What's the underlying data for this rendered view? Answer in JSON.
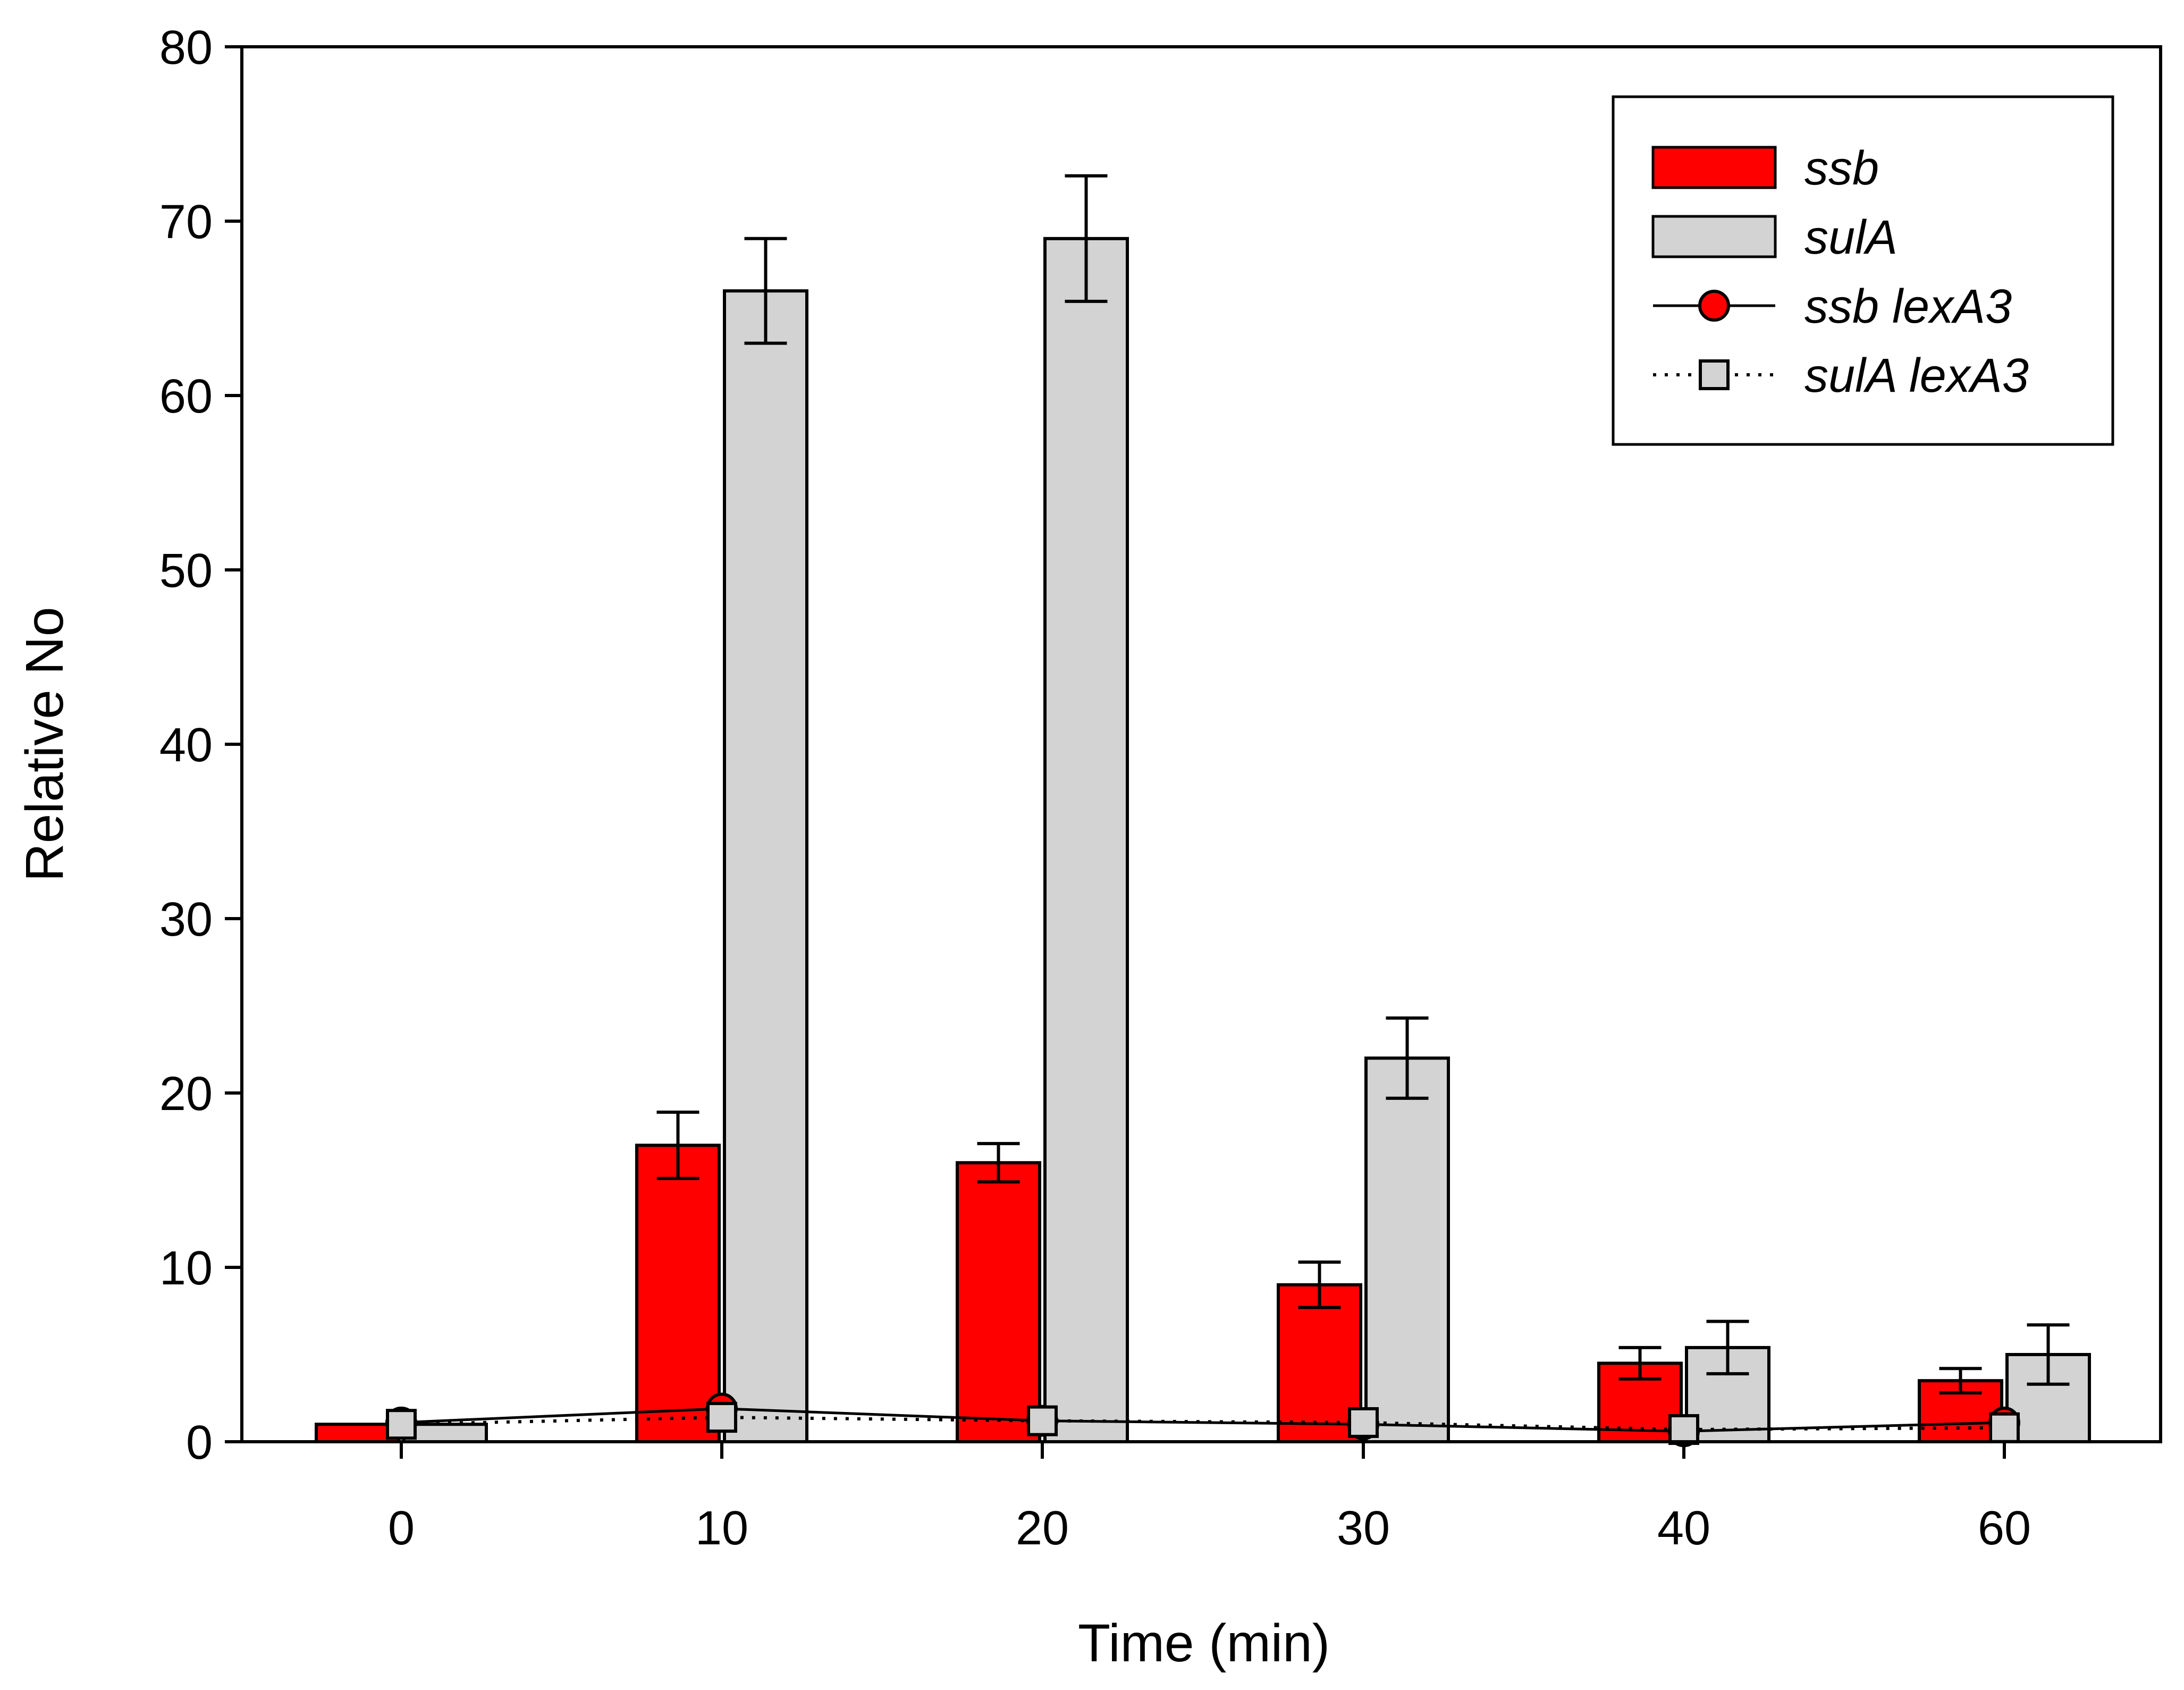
{
  "chart_data": {
    "type": "bar",
    "title": "",
    "xlabel": "Time (min)",
    "ylabel": "Relative No",
    "ylim": [
      0,
      80
    ],
    "yticks": [
      0,
      10,
      20,
      30,
      40,
      50,
      60,
      70,
      80
    ],
    "categories": [
      "0",
      "10",
      "20",
      "30",
      "40",
      "60"
    ],
    "legend_position": "top-right",
    "colors": {
      "ssb": "#ff0000",
      "sulA": "#d3d3d3",
      "axis": "#000000"
    },
    "bar_series": [
      {
        "name": "ssb",
        "color": "#ff0000",
        "values": [
          1,
          17,
          16,
          9,
          4.5,
          3.5
        ],
        "errors": [
          0,
          1.9,
          1.1,
          1.3,
          0.9,
          0.7
        ]
      },
      {
        "name": "sulA",
        "color": "#d3d3d3",
        "values": [
          1,
          66,
          69,
          22,
          5.4,
          5.0
        ],
        "errors": [
          0,
          3.0,
          3.6,
          2.3,
          1.5,
          1.7
        ]
      }
    ],
    "line_series": [
      {
        "name": "ssb lexA3",
        "marker": "circle",
        "color": "#ff0000",
        "line_style": "solid",
        "values": [
          1.1,
          1.9,
          1.2,
          1.0,
          0.6,
          1.1
        ]
      },
      {
        "name": "sulA lexA3",
        "marker": "square",
        "color": "#d3d3d3",
        "line_style": "dotted",
        "values": [
          1.0,
          1.4,
          1.2,
          1.1,
          0.7,
          0.8
        ]
      }
    ]
  }
}
